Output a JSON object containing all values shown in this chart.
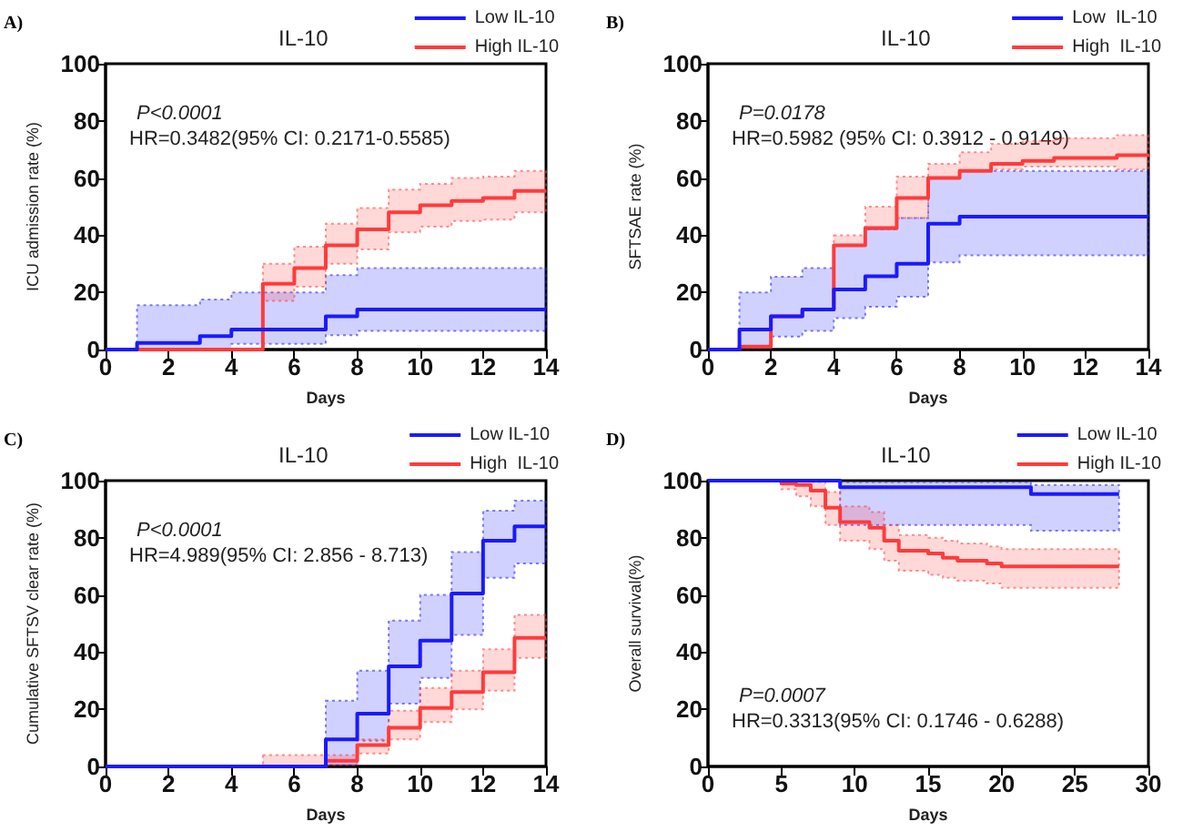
{
  "chart_data": [
    {
      "type": "step",
      "title": "IL-10",
      "xlabel": "Days",
      "ylabel": "ICU admission rate (%)",
      "annotations": [
        "A)",
        "P<0.0001",
        "HR=0.3482(95% CI: 0.2171-0.5585)"
      ],
      "xlim": [
        0,
        14
      ],
      "xticks": [
        0,
        2,
        4,
        6,
        8,
        10,
        12,
        14
      ],
      "ylim": [
        0,
        100
      ],
      "yticks": [
        0,
        20,
        40,
        60,
        80,
        100
      ],
      "legend": "top right",
      "grid": false,
      "marker": "none",
      "line_style": "solid",
      "series": [
        {
          "name": "Low IL-10",
          "color": "#1a1aff",
          "x": [
            0,
            1,
            3,
            4,
            7,
            8,
            14
          ],
          "values": [
            0,
            2.3,
            4.7,
            7,
            11.6,
            14,
            14
          ],
          "lower": [
            null,
            0,
            0.3,
            2,
            5,
            6.5,
            6.5
          ],
          "upper": [
            null,
            15.5,
            17.5,
            20,
            26,
            28.5,
            28.5
          ]
        },
        {
          "name": "High IL-10",
          "color": "#ff3b3b",
          "x": [
            0,
            5,
            6,
            7,
            8,
            9,
            10,
            11,
            12,
            13,
            14
          ],
          "values": [
            0,
            23,
            28.5,
            36.5,
            42,
            48,
            50.5,
            52,
            53,
            55.5,
            55.5
          ],
          "lower": [
            null,
            17,
            22,
            30,
            35,
            41,
            43,
            45,
            45.5,
            48,
            48
          ],
          "upper": [
            null,
            30,
            36,
            44,
            49.5,
            56,
            58,
            60,
            60.5,
            62.5,
            62.5
          ]
        }
      ]
    },
    {
      "type": "step",
      "title": "IL-10",
      "xlabel": "Days",
      "ylabel": "SFTSAE rate (%)",
      "annotations": [
        "B)",
        "P=0.0178",
        "HR=0.5982 (95% CI: 0.3912 - 0.9149)"
      ],
      "xlim": [
        0,
        14
      ],
      "xticks": [
        0,
        2,
        4,
        6,
        8,
        10,
        12,
        14
      ],
      "ylim": [
        0,
        100
      ],
      "yticks": [
        0,
        20,
        40,
        60,
        80,
        100
      ],
      "legend": "top right",
      "grid": false,
      "marker": "none",
      "line_style": "solid",
      "series": [
        {
          "name": "Low  IL-10",
          "color": "#1a1aff",
          "x": [
            0,
            1,
            2,
            3,
            4,
            5,
            6,
            7,
            8,
            14
          ],
          "values": [
            0,
            7,
            11.6,
            14,
            21,
            25.6,
            30,
            44,
            46.5,
            46.5
          ],
          "lower": [
            null,
            0.5,
            4.5,
            6.5,
            11,
            15,
            18.5,
            30.5,
            33,
            33
          ],
          "upper": [
            null,
            20,
            25.5,
            28.5,
            36.5,
            42,
            46,
            60,
            62.5,
            62.5
          ]
        },
        {
          "name": "High  IL-10",
          "color": "#ff3b3b",
          "x": [
            0,
            1,
            2,
            3,
            4,
            5,
            6,
            7,
            8,
            9,
            10,
            11,
            13,
            14
          ],
          "values": [
            0,
            1,
            11.6,
            14,
            36.5,
            42.5,
            53,
            60,
            62.5,
            65,
            66,
            67,
            68,
            68.5
          ],
          "lower": [
            null,
            null,
            null,
            null,
            36.5,
            42,
            46,
            60,
            62.5,
            63,
            64,
            64,
            63,
            63
          ],
          "upper": [
            null,
            null,
            null,
            null,
            40,
            50,
            60.5,
            65,
            69,
            72,
            73,
            74,
            75,
            75
          ]
        }
      ]
    },
    {
      "type": "step",
      "title": "IL-10",
      "xlabel": "Days",
      "ylabel": "Cumulative SFTSV clear rate (%)",
      "annotations": [
        "C)",
        "P<0.0001",
        "HR=4.989(95% CI: 2.856 - 8.713)"
      ],
      "xlim": [
        0,
        14
      ],
      "xticks": [
        0,
        2,
        4,
        6,
        8,
        10,
        12,
        14
      ],
      "ylim": [
        0,
        100
      ],
      "yticks": [
        0,
        20,
        40,
        60,
        80,
        100
      ],
      "legend": "top right",
      "grid": false,
      "marker": "none",
      "line_style": "solid",
      "series": [
        {
          "name": "Low IL-10",
          "color": "#1a1aff",
          "x": [
            0,
            7,
            8,
            9,
            10,
            11,
            12,
            13,
            14
          ],
          "values": [
            0,
            9.5,
            18.5,
            35,
            44,
            60.5,
            79,
            84,
            84
          ],
          "lower": [
            null,
            0.5,
            9,
            22,
            31,
            46,
            66,
            71,
            71
          ],
          "upper": [
            null,
            23,
            33.5,
            51,
            60,
            75,
            89.5,
            93,
            93
          ]
        },
        {
          "name": "High  IL-10",
          "color": "#ff3b3b",
          "x": [
            0,
            5,
            7,
            8,
            9,
            10,
            11,
            12,
            13,
            14
          ],
          "values": [
            0,
            0,
            2,
            7.5,
            13.5,
            20.5,
            26,
            33,
            45,
            45
          ],
          "lower": [
            null,
            0,
            0.5,
            4.5,
            9.5,
            15.5,
            20,
            26.5,
            38,
            38
          ],
          "upper": [
            null,
            4,
            4,
            9.5,
            19.5,
            27.5,
            33.5,
            41,
            53,
            53
          ]
        }
      ]
    },
    {
      "type": "step",
      "title": "IL-10",
      "xlabel": "Days",
      "ylabel": "Overall survival(%)",
      "annotations": [
        "D)",
        "P=0.0007",
        "HR=0.3313(95% CI: 0.1746 - 0.6288)"
      ],
      "xlim": [
        0,
        30
      ],
      "xticks": [
        0,
        5,
        10,
        15,
        20,
        25,
        30
      ],
      "ylim": [
        0,
        100
      ],
      "yticks": [
        0,
        20,
        40,
        60,
        80,
        100
      ],
      "legend": "top right",
      "grid": false,
      "marker": "none",
      "line_style": "solid",
      "series": [
        {
          "name": "Low IL-10",
          "color": "#1a1aff",
          "x": [
            0,
            9,
            22,
            28
          ],
          "values": [
            100,
            97.7,
            95.3,
            95.3
          ],
          "lower": [
            null,
            84.5,
            82.5,
            82.5
          ],
          "upper": [
            null,
            99.5,
            98.5,
            98.5
          ]
        },
        {
          "name": "High IL-10",
          "color": "#ff3b3b",
          "x": [
            0,
            5,
            6,
            7,
            8,
            9,
            11,
            12,
            13,
            15,
            16,
            17,
            19,
            20,
            28
          ],
          "values": [
            100,
            99,
            98.5,
            96.5,
            90.5,
            85.5,
            83.5,
            79,
            75.5,
            74.5,
            73,
            72,
            71,
            70,
            70
          ],
          "lower": [
            null,
            97,
            94.5,
            91,
            84.5,
            79,
            76,
            72,
            68.5,
            67,
            66,
            65,
            64,
            62.5,
            62.5
          ],
          "upper": [
            null,
            100,
            100,
            99.5,
            96,
            91,
            89,
            84.5,
            81,
            80,
            79,
            78,
            77,
            76,
            76
          ]
        }
      ]
    }
  ]
}
